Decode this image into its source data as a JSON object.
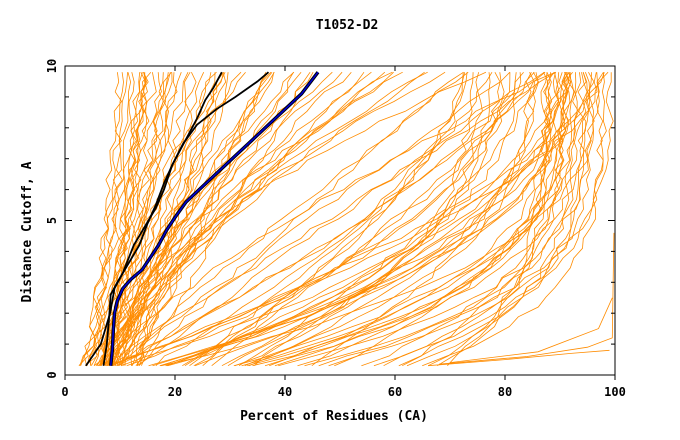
{
  "chart_data": {
    "type": "line",
    "title": "T1052-D2",
    "xlabel": "Percent of Residues (CA)",
    "ylabel": "Distance Cutoff, A",
    "xlim": [
      0,
      100
    ],
    "ylim": [
      0,
      10
    ],
    "xticks": [
      "0",
      "20",
      "40",
      "60",
      "80",
      "100"
    ],
    "yticks": [
      "0",
      "5",
      "10"
    ],
    "grid": false,
    "colors": {
      "models": "#ff8c00",
      "highlight_black": "#000000",
      "highlight_blue": "#0000cd"
    },
    "highlighted_series": [
      {
        "color": "black",
        "x": [
          3.8,
          6.5,
          8.2,
          9.0,
          10.5,
          12.5,
          14.5,
          16.5,
          18.0,
          19.5,
          21.5,
          24.0,
          27.5,
          31.0,
          35.0,
          37.0
        ],
        "y": [
          0.3,
          1.0,
          2.0,
          2.8,
          3.3,
          4.2,
          4.8,
          5.4,
          6.0,
          6.8,
          7.5,
          8.1,
          8.6,
          9.0,
          9.5,
          9.8
        ]
      },
      {
        "color": "black",
        "x": [
          7.0,
          7.6,
          8.0,
          8.3,
          9.5,
          11.5,
          13.5,
          15.0,
          16.5,
          18.0,
          19.5,
          21.0,
          22.5,
          24.0,
          25.5,
          27.0,
          28.5
        ],
        "y": [
          0.3,
          1.0,
          1.8,
          2.6,
          3.0,
          3.6,
          4.2,
          4.9,
          5.5,
          6.2,
          6.8,
          7.3,
          7.8,
          8.3,
          8.9,
          9.3,
          9.8
        ]
      },
      {
        "color": "blue",
        "x": [
          8.3,
          8.6,
          8.8,
          9.0,
          9.5,
          10.5,
          12.0,
          14.0,
          15.5,
          17.0,
          18.5,
          20.0,
          22.0,
          25.0,
          28.0,
          31.0,
          34.0,
          37.0,
          40.0,
          43.0,
          46.0
        ],
        "y": [
          0.3,
          0.8,
          1.5,
          2.0,
          2.4,
          2.8,
          3.1,
          3.4,
          3.8,
          4.2,
          4.7,
          5.1,
          5.6,
          6.1,
          6.6,
          7.1,
          7.6,
          8.1,
          8.6,
          9.1,
          9.8
        ]
      }
    ]
  }
}
